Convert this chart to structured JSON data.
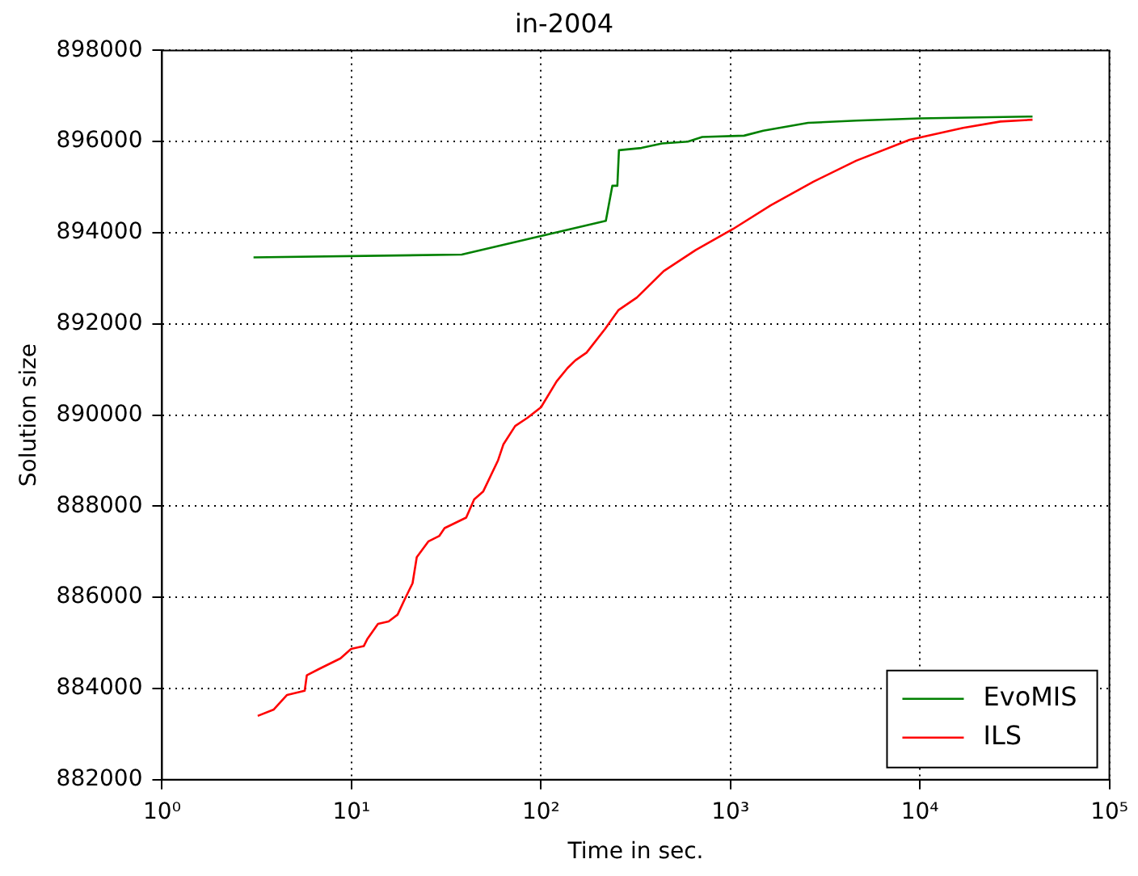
{
  "chart_data": {
    "type": "line",
    "title": "in-2004",
    "xlabel": "Time in sec.",
    "ylabel": "Solution size",
    "log": "x",
    "grid": true,
    "legend": "bottom right",
    "marker": "none",
    "line_style": "solid",
    "xlim": [
      1,
      100000
    ],
    "xticks": [
      {
        "value": 1,
        "label": "10⁰"
      },
      {
        "value": 10,
        "label": "10¹"
      },
      {
        "value": 100,
        "label": "10²"
      },
      {
        "value": 1000,
        "label": "10³"
      },
      {
        "value": 10000,
        "label": "10⁴"
      },
      {
        "value": 100000,
        "label": "10⁵"
      }
    ],
    "ylim": [
      882000,
      898000
    ],
    "yticks": [
      882000,
      884000,
      886000,
      888000,
      890000,
      892000,
      894000,
      896000,
      898000
    ],
    "series": [
      {
        "name": "EvoMIS",
        "color": "#008000",
        "x": [
          3.04,
          38.2,
          220,
          238,
          253,
          258,
          339,
          436,
          596,
          710,
          1180,
          1490,
          2570,
          4610,
          10000,
          39300
        ],
        "values": [
          893460,
          893520,
          894260,
          895030,
          895030,
          895810,
          895860,
          895960,
          896000,
          896100,
          896130,
          896240,
          896410,
          896460,
          896510,
          896550
        ]
      },
      {
        "name": "ILS",
        "color": "#ff0000",
        "x": [
          3.2,
          3.89,
          4.57,
          5.66,
          5.81,
          6.75,
          8.74,
          9.95,
          11.6,
          12.1,
          13.8,
          15.7,
          17.5,
          19.1,
          21.0,
          22.1,
          25.5,
          29.1,
          31.0,
          40.3,
          44.4,
          49.5,
          59.4,
          63.4,
          73.1,
          84.9,
          100,
          121,
          138,
          152,
          174,
          218,
          256,
          321,
          445,
          656,
          1030,
          1630,
          2740,
          4610,
          8820,
          16900,
          26600,
          39300
        ],
        "values": [
          883400,
          883540,
          883860,
          883950,
          884290,
          884430,
          884660,
          884870,
          884930,
          885080,
          885420,
          885470,
          885620,
          885960,
          886310,
          886880,
          887230,
          887350,
          887520,
          887750,
          888150,
          888320,
          889010,
          889360,
          889760,
          889940,
          890170,
          890740,
          891030,
          891200,
          891370,
          891890,
          892300,
          892580,
          893160,
          893620,
          894080,
          894600,
          895120,
          895580,
          896040,
          896300,
          896440,
          896480
        ]
      }
    ]
  }
}
